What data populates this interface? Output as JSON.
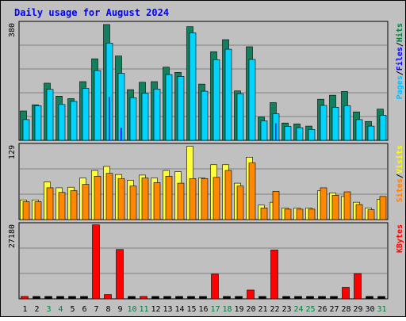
{
  "chart_data": {
    "type": "bar",
    "title": "Daily usage for August 2024",
    "categories": [
      "1",
      "2",
      "3",
      "4",
      "5",
      "6",
      "7",
      "8",
      "9",
      "10",
      "11",
      "12",
      "13",
      "14",
      "15",
      "16",
      "17",
      "18",
      "19",
      "20",
      "21",
      "22",
      "23",
      "24",
      "25",
      "26",
      "27",
      "28",
      "29",
      "30",
      "31"
    ],
    "weekend_days": [
      "3",
      "4",
      "10",
      "11",
      "17",
      "18",
      "24",
      "25",
      "31"
    ],
    "panels": [
      {
        "id": "hits-files-pages",
        "max_label": "380",
        "ylim": [
          0,
          380
        ],
        "legend": [
          {
            "text": "Pages",
            "color": "#00c0ff"
          },
          {
            "text": "Files",
            "color": "#0000ff"
          },
          {
            "text": "Hits",
            "color": "#008040"
          }
        ],
        "series": [
          {
            "name": "Hits",
            "color": "#127f5f",
            "values": [
              95,
              115,
              185,
              143,
              135,
              190,
              264,
              375,
              273,
              164,
              188,
              190,
              237,
              220,
              368,
              182,
              287,
              326,
              160,
              303,
              75,
              122,
              56,
              53,
              46,
              133,
              146,
              158,
              92,
              61,
              101
            ]
          },
          {
            "name": "Files",
            "color": "#00d4ff",
            "values": [
              67,
              112,
              165,
              116,
              126,
              168,
              226,
              315,
              217,
              138,
              152,
              166,
              213,
              207,
              348,
              159,
              261,
              295,
              151,
              262,
              63,
              86,
              45,
              41,
              35,
              113,
              107,
              112,
              67,
              46,
              81
            ]
          },
          {
            "name": "Pages",
            "color": "#0000ff",
            "values": [
              0,
              0,
              0,
              0,
              0,
              0,
              0,
              140,
              40,
              0,
              0,
              0,
              0,
              0,
              0,
              0,
              0,
              0,
              0,
              0,
              0,
              55,
              0,
              0,
              0,
              0,
              0,
              0,
              0,
              0,
              0
            ]
          }
        ]
      },
      {
        "id": "visits-sites",
        "max_label": "129",
        "ylim": [
          0,
          129
        ],
        "legend": [
          {
            "text": "Sites",
            "color": "#ff8000"
          },
          {
            "text": "Visits",
            "color": "#ffff00"
          }
        ],
        "series": [
          {
            "name": "Visits",
            "color": "#ffff40",
            "values": [
              34,
              34,
              65,
              55,
              56,
              72,
              85,
              92,
              78,
              68,
              77,
              72,
              85,
              83,
              127,
              72,
              95,
              95,
              63,
              108,
              25,
              30,
              20,
              20,
              20,
              50,
              46,
              40,
              30,
              20,
              35
            ]
          },
          {
            "name": "Sites",
            "color": "#ff8800",
            "values": [
              31,
              31,
              55,
              47,
              50,
              61,
              75,
              80,
              71,
              58,
              72,
              64,
              75,
              63,
              71,
              71,
              73,
              85,
              58,
              98,
              20,
              49,
              18,
              18,
              18,
              55,
              42,
              48,
              26,
              17,
              40
            ]
          }
        ]
      },
      {
        "id": "kbytes",
        "max_label": "27180",
        "ylim": [
          0,
          27180
        ],
        "legend": [
          {
            "text": "KBytes",
            "color": "#ff0000"
          }
        ],
        "series": [
          {
            "name": "KBytes",
            "color": "#ff0000",
            "values": [
              780,
              0,
              0,
              0,
              0,
              0,
              27000,
              1560,
              18000,
              0,
              520,
              0,
              0,
              0,
              0,
              0,
              9000,
              0,
              0,
              3200,
              0,
              17800,
              0,
              0,
              0,
              0,
              0,
              4200,
              9200,
              0,
              0
            ]
          }
        ]
      }
    ],
    "grid": true
  }
}
